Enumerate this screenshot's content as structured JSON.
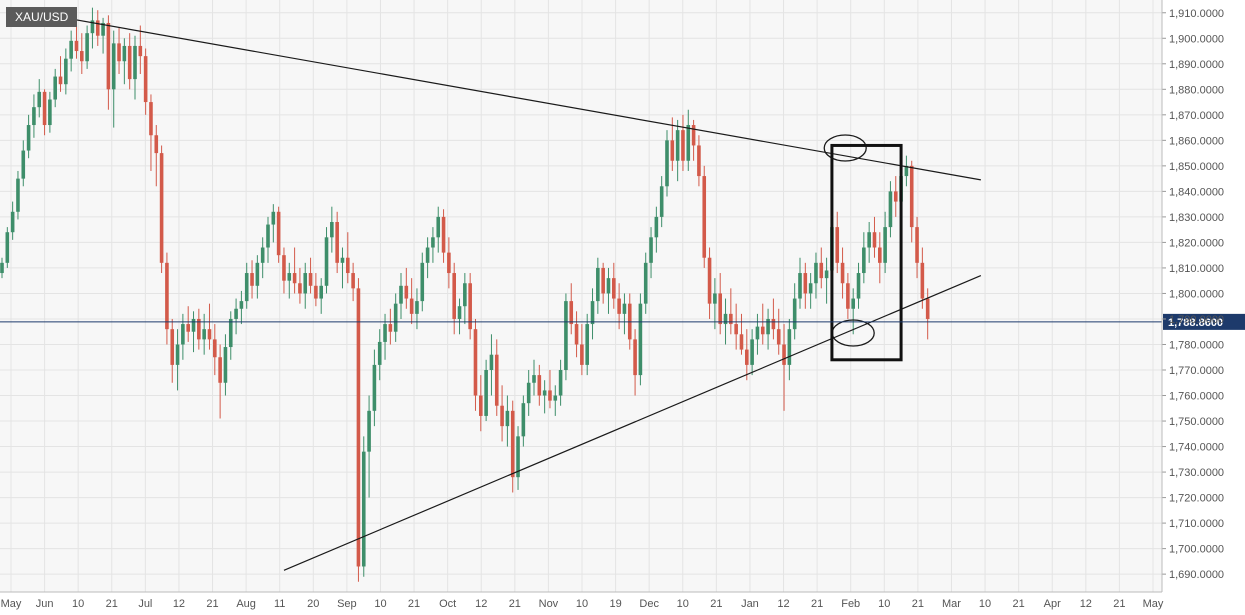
{
  "symbol": "XAU/USD",
  "colors": {
    "up": "#3e8e6a",
    "down": "#d35a4a",
    "current_line": "#1d3a6b",
    "grid": "#e4e4e4",
    "trendline": "#1a1a1a",
    "price_tag_bg": "#1d3a6b"
  },
  "chart_data": {
    "type": "candlestick",
    "symbol": "XAU/USD",
    "y_ticks": [
      1690,
      1700,
      1710,
      1720,
      1730,
      1740,
      1750,
      1760,
      1770,
      1780,
      1790,
      1800,
      1810,
      1820,
      1830,
      1840,
      1850,
      1860,
      1870,
      1880,
      1890,
      1900,
      1910
    ],
    "y_tick_labels": [
      "1,690.0000",
      "1,700.0000",
      "1,710.0000",
      "1,720.0000",
      "1,730.0000",
      "1,740.0000",
      "1,750.0000",
      "1,760.0000",
      "1,770.0000",
      "1,780.0000",
      "1,790.0000",
      "1,800.0000",
      "1,810.0000",
      "1,820.0000",
      "1,830.0000",
      "1,840.0000",
      "1,850.0000",
      "1,860.0000",
      "1,870.0000",
      "1,880.0000",
      "1,890.0000",
      "1,900.0000",
      "1,910.0000"
    ],
    "ylim": [
      1683,
      1915
    ],
    "x_tick_labels": [
      "May",
      "Jun",
      "10",
      "21",
      "Jul",
      "12",
      "21",
      "Aug",
      "11",
      "20",
      "Sep",
      "10",
      "21",
      "Oct",
      "12",
      "21",
      "Nov",
      "10",
      "19",
      "Dec",
      "10",
      "21",
      "Jan",
      "12",
      "21",
      "Feb",
      "10",
      "21",
      "Mar",
      "10",
      "21",
      "Apr",
      "12",
      "21",
      "May"
    ],
    "current_price": 1788.86,
    "current_price_label": "1,788.8600",
    "grid": true,
    "candles": [
      [
        1808,
        1814,
        1806,
        1812
      ],
      [
        1812,
        1826,
        1810,
        1824
      ],
      [
        1824,
        1836,
        1821,
        1832
      ],
      [
        1832,
        1848,
        1829,
        1845
      ],
      [
        1845,
        1860,
        1842,
        1856
      ],
      [
        1856,
        1870,
        1853,
        1866
      ],
      [
        1866,
        1878,
        1861,
        1873
      ],
      [
        1873,
        1884,
        1869,
        1879
      ],
      [
        1879,
        1880,
        1862,
        1866
      ],
      [
        1866,
        1879,
        1863,
        1876
      ],
      [
        1876,
        1888,
        1873,
        1885
      ],
      [
        1885,
        1893,
        1879,
        1882
      ],
      [
        1882,
        1896,
        1878,
        1892
      ],
      [
        1892,
        1903,
        1887,
        1899
      ],
      [
        1899,
        1906,
        1892,
        1895
      ],
      [
        1895,
        1902,
        1886,
        1891
      ],
      [
        1891,
        1905,
        1888,
        1902
      ],
      [
        1902,
        1912,
        1896,
        1907
      ],
      [
        1907,
        1911,
        1897,
        1901
      ],
      [
        1901,
        1908,
        1894,
        1906
      ],
      [
        1906,
        1909,
        1872,
        1880
      ],
      [
        1880,
        1903,
        1865,
        1898
      ],
      [
        1898,
        1904,
        1886,
        1891
      ],
      [
        1891,
        1900,
        1882,
        1897
      ],
      [
        1897,
        1902,
        1880,
        1884
      ],
      [
        1884,
        1901,
        1876,
        1897
      ],
      [
        1897,
        1905,
        1886,
        1893
      ],
      [
        1893,
        1896,
        1870,
        1875
      ],
      [
        1875,
        1878,
        1848,
        1862
      ],
      [
        1862,
        1866,
        1842,
        1855
      ],
      [
        1855,
        1858,
        1808,
        1812
      ],
      [
        1812,
        1816,
        1780,
        1786
      ],
      [
        1786,
        1790,
        1765,
        1772
      ],
      [
        1772,
        1786,
        1762,
        1780
      ],
      [
        1780,
        1792,
        1774,
        1788
      ],
      [
        1788,
        1795,
        1781,
        1785
      ],
      [
        1785,
        1793,
        1777,
        1790
      ],
      [
        1790,
        1794,
        1778,
        1782
      ],
      [
        1782,
        1792,
        1776,
        1786
      ],
      [
        1786,
        1796,
        1778,
        1782
      ],
      [
        1782,
        1788,
        1768,
        1775
      ],
      [
        1775,
        1780,
        1751,
        1765
      ],
      [
        1765,
        1784,
        1760,
        1779
      ],
      [
        1779,
        1793,
        1774,
        1790
      ],
      [
        1790,
        1798,
        1784,
        1794
      ],
      [
        1794,
        1801,
        1788,
        1797
      ],
      [
        1797,
        1812,
        1794,
        1808
      ],
      [
        1808,
        1813,
        1798,
        1803
      ],
      [
        1803,
        1815,
        1798,
        1812
      ],
      [
        1812,
        1822,
        1806,
        1818
      ],
      [
        1818,
        1830,
        1812,
        1827
      ],
      [
        1827,
        1835,
        1820,
        1832
      ],
      [
        1832,
        1834,
        1812,
        1815
      ],
      [
        1815,
        1818,
        1800,
        1805
      ],
      [
        1805,
        1812,
        1798,
        1808
      ],
      [
        1808,
        1818,
        1800,
        1804
      ],
      [
        1804,
        1810,
        1796,
        1800
      ],
      [
        1800,
        1812,
        1794,
        1808
      ],
      [
        1808,
        1814,
        1800,
        1803
      ],
      [
        1803,
        1808,
        1795,
        1798
      ],
      [
        1798,
        1806,
        1792,
        1803
      ],
      [
        1803,
        1826,
        1800,
        1822
      ],
      [
        1822,
        1834,
        1816,
        1828
      ],
      [
        1828,
        1832,
        1808,
        1812
      ],
      [
        1812,
        1818,
        1802,
        1814
      ],
      [
        1814,
        1824,
        1804,
        1808
      ],
      [
        1808,
        1812,
        1797,
        1802
      ],
      [
        1802,
        1806,
        1687,
        1693
      ],
      [
        1693,
        1744,
        1689,
        1738
      ],
      [
        1738,
        1760,
        1720,
        1754
      ],
      [
        1754,
        1778,
        1748,
        1772
      ],
      [
        1772,
        1786,
        1766,
        1781
      ],
      [
        1781,
        1792,
        1774,
        1788
      ],
      [
        1788,
        1794,
        1780,
        1785
      ],
      [
        1785,
        1800,
        1781,
        1796
      ],
      [
        1796,
        1808,
        1790,
        1803
      ],
      [
        1803,
        1810,
        1794,
        1798
      ],
      [
        1798,
        1806,
        1788,
        1792
      ],
      [
        1792,
        1802,
        1786,
        1797
      ],
      [
        1797,
        1816,
        1793,
        1812
      ],
      [
        1812,
        1822,
        1806,
        1818
      ],
      [
        1818,
        1826,
        1812,
        1822
      ],
      [
        1822,
        1834,
        1816,
        1830
      ],
      [
        1830,
        1833,
        1812,
        1816
      ],
      [
        1816,
        1822,
        1802,
        1808
      ],
      [
        1808,
        1812,
        1784,
        1790
      ],
      [
        1790,
        1798,
        1784,
        1795
      ],
      [
        1795,
        1808,
        1788,
        1804
      ],
      [
        1804,
        1808,
        1782,
        1786
      ],
      [
        1786,
        1790,
        1754,
        1760
      ],
      [
        1760,
        1768,
        1746,
        1752
      ],
      [
        1752,
        1774,
        1750,
        1770
      ],
      [
        1770,
        1784,
        1760,
        1776
      ],
      [
        1776,
        1782,
        1752,
        1756
      ],
      [
        1756,
        1764,
        1742,
        1748
      ],
      [
        1748,
        1760,
        1740,
        1754
      ],
      [
        1754,
        1758,
        1722,
        1728
      ],
      [
        1728,
        1748,
        1723,
        1744
      ],
      [
        1744,
        1760,
        1740,
        1757
      ],
      [
        1757,
        1770,
        1752,
        1765
      ],
      [
        1765,
        1774,
        1760,
        1768
      ],
      [
        1768,
        1772,
        1756,
        1760
      ],
      [
        1760,
        1766,
        1753,
        1762
      ],
      [
        1762,
        1770,
        1755,
        1758
      ],
      [
        1758,
        1764,
        1752,
        1760
      ],
      [
        1760,
        1774,
        1756,
        1770
      ],
      [
        1770,
        1800,
        1766,
        1797
      ],
      [
        1797,
        1804,
        1784,
        1788
      ],
      [
        1788,
        1793,
        1775,
        1780
      ],
      [
        1780,
        1788,
        1768,
        1772
      ],
      [
        1772,
        1792,
        1768,
        1788
      ],
      [
        1788,
        1802,
        1782,
        1797
      ],
      [
        1797,
        1814,
        1792,
        1810
      ],
      [
        1810,
        1812,
        1796,
        1800
      ],
      [
        1800,
        1810,
        1792,
        1806
      ],
      [
        1806,
        1812,
        1794,
        1798
      ],
      [
        1798,
        1804,
        1786,
        1792
      ],
      [
        1792,
        1800,
        1784,
        1796
      ],
      [
        1796,
        1800,
        1778,
        1782
      ],
      [
        1782,
        1786,
        1760,
        1768
      ],
      [
        1768,
        1800,
        1764,
        1796
      ],
      [
        1796,
        1816,
        1792,
        1812
      ],
      [
        1812,
        1826,
        1806,
        1822
      ],
      [
        1822,
        1834,
        1816,
        1830
      ],
      [
        1830,
        1846,
        1826,
        1842
      ],
      [
        1842,
        1864,
        1838,
        1860
      ],
      [
        1860,
        1869,
        1848,
        1852
      ],
      [
        1852,
        1868,
        1844,
        1864
      ],
      [
        1864,
        1870,
        1848,
        1852
      ],
      [
        1852,
        1872,
        1848,
        1866
      ],
      [
        1866,
        1868,
        1852,
        1858
      ],
      [
        1858,
        1862,
        1842,
        1846
      ],
      [
        1846,
        1850,
        1810,
        1814
      ],
      [
        1814,
        1818,
        1790,
        1796
      ],
      [
        1796,
        1806,
        1786,
        1800
      ],
      [
        1800,
        1808,
        1784,
        1788
      ],
      [
        1788,
        1798,
        1780,
        1792
      ],
      [
        1792,
        1802,
        1784,
        1788
      ],
      [
        1788,
        1796,
        1778,
        1784
      ],
      [
        1784,
        1792,
        1776,
        1778
      ],
      [
        1778,
        1786,
        1766,
        1772
      ],
      [
        1772,
        1786,
        1768,
        1782
      ],
      [
        1782,
        1792,
        1776,
        1787
      ],
      [
        1787,
        1796,
        1780,
        1784
      ],
      [
        1784,
        1794,
        1778,
        1790
      ],
      [
        1790,
        1798,
        1782,
        1786
      ],
      [
        1786,
        1794,
        1776,
        1780
      ],
      [
        1780,
        1788,
        1754,
        1772
      ],
      [
        1772,
        1790,
        1766,
        1786
      ],
      [
        1786,
        1804,
        1782,
        1798
      ],
      [
        1798,
        1814,
        1794,
        1808
      ],
      [
        1808,
        1812,
        1794,
        1800
      ],
      [
        1800,
        1808,
        1794,
        1804
      ],
      [
        1804,
        1816,
        1798,
        1812
      ],
      [
        1812,
        1818,
        1802,
        1806
      ],
      [
        1806,
        1814,
        1796,
        1809
      ],
      [
        1809,
        1830,
        1806,
        1826
      ],
      [
        1826,
        1832,
        1808,
        1812
      ],
      [
        1812,
        1818,
        1798,
        1804
      ],
      [
        1804,
        1808,
        1790,
        1794
      ],
      [
        1794,
        1802,
        1784,
        1798
      ],
      [
        1798,
        1812,
        1794,
        1808
      ],
      [
        1808,
        1824,
        1804,
        1818
      ],
      [
        1818,
        1828,
        1812,
        1824
      ],
      [
        1824,
        1830,
        1814,
        1818
      ],
      [
        1818,
        1824,
        1804,
        1812
      ],
      [
        1812,
        1832,
        1808,
        1826
      ],
      [
        1826,
        1844,
        1822,
        1840
      ],
      [
        1840,
        1846,
        1830,
        1836
      ],
      [
        1836,
        1850,
        1832,
        1846
      ],
      [
        1846,
        1854,
        1842,
        1850
      ],
      [
        1850,
        1852,
        1820,
        1826
      ],
      [
        1826,
        1830,
        1806,
        1812
      ],
      [
        1812,
        1818,
        1794,
        1798
      ],
      [
        1798,
        1802,
        1782,
        1790
      ]
    ],
    "trendlines": [
      {
        "name": "upper",
        "x0": 1,
        "y0": 1912,
        "x1": 184,
        "y1": 1844.5
      },
      {
        "name": "lower",
        "x0": 53,
        "y0": 1691.5,
        "x1": 184,
        "y1": 1807
      }
    ],
    "annotations": [
      {
        "shape": "ellipse",
        "x": 158.5,
        "y": 1857
      },
      {
        "shape": "ellipse",
        "x": 160,
        "y": 1784.5
      },
      {
        "shape": "rectangle",
        "x0": 156,
        "x1": 169,
        "y0": 1774,
        "y1": 1858
      }
    ]
  }
}
